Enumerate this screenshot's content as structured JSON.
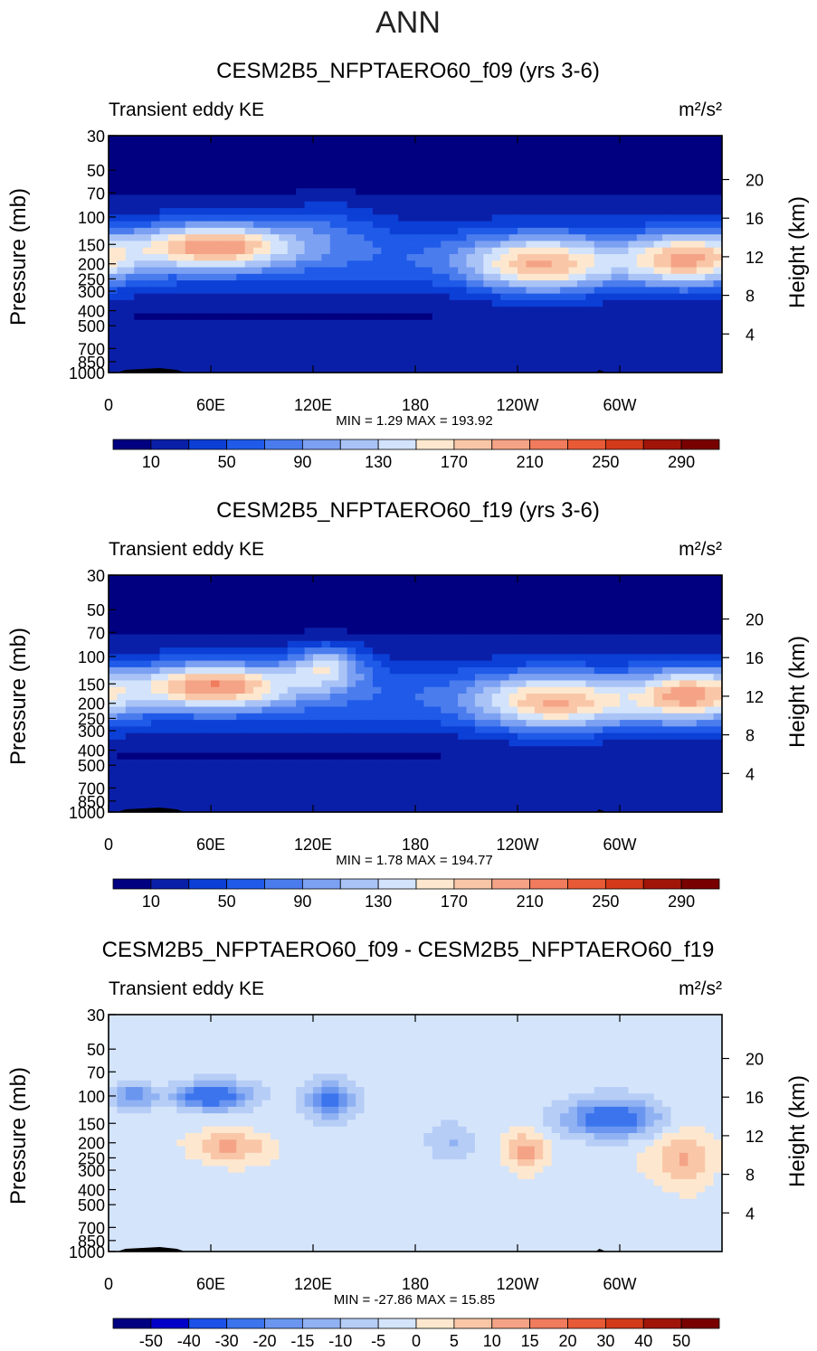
{
  "figure_title": "ANN",
  "colors": {
    "pos": [
      "#f4f7fc",
      "#e6effa",
      "#d2e3f7",
      "#bed4f5",
      "#a8c4f3",
      "#8cb1f0",
      "#6f9af0",
      "#4d80ee",
      "#2b63e7",
      "#1447d1",
      "#0a2fb0",
      "#051f90"
    ],
    "warm": [
      "#fde8cf",
      "#f9c7a8",
      "#f5a386",
      "#f07b5d",
      "#e85a36",
      "#d23a1a",
      "#a01508",
      "#780000"
    ],
    "diff": [
      "#000080",
      "#0000c8",
      "#1c52e8",
      "#3b74ed",
      "#6a96f0",
      "#90b2f3",
      "#b6cdf6",
      "#d4e4fb",
      "#fde8cf",
      "#f9c7a8",
      "#f5a386",
      "#f07b5d",
      "#e85a36",
      "#d23a1a",
      "#a01508",
      "#780000"
    ]
  },
  "chart_data": [
    {
      "type": "heatmap",
      "title": "CESM2B5_NFPTAERO60_f09 (yrs 3-6)",
      "left_label": "Transient eddy KE",
      "right_label": "m²/s²",
      "xlabel": "",
      "ylabel": "Pressure  (mb)",
      "ylabel_right": "Height  (km)",
      "xticks": [
        "0",
        "60E",
        "120E",
        "180",
        "120W",
        "60W"
      ],
      "xtick_lon": [
        0,
        60,
        120,
        180,
        240,
        300
      ],
      "xlim": [
        0,
        360
      ],
      "yticks": [
        "30",
        "50",
        "70",
        "100",
        "150",
        "200",
        "250",
        "300",
        "400",
        "500",
        "700",
        "850",
        "1000"
      ],
      "ytick_p": [
        30,
        50,
        70,
        100,
        150,
        200,
        250,
        300,
        400,
        500,
        700,
        850,
        1000
      ],
      "ylim": [
        1000,
        30
      ],
      "right_ticks": [
        "20",
        "16",
        "12",
        "8",
        "4"
      ],
      "right_tick_km": [
        20,
        16,
        12,
        8,
        4
      ],
      "min_max": "MIN =     1.29   MAX =  193.92",
      "levels": [
        10,
        30,
        50,
        70,
        90,
        110,
        130,
        150,
        170,
        190,
        210,
        230,
        250,
        270,
        290
      ],
      "colorbar_labels": [
        "10",
        "50",
        "90",
        "130",
        "170",
        "210",
        "250",
        "290"
      ],
      "colorbar_label_index": [
        0,
        2,
        4,
        6,
        8,
        10,
        12,
        14
      ],
      "colorbar_colors": [
        "#000080",
        "#0a1fa8",
        "#0b3fd6",
        "#1f5ae8",
        "#4a7cee",
        "#7ca0f2",
        "#a9c3f6",
        "#d2e3fb",
        "#fde8cf",
        "#f9c7a8",
        "#f5a386",
        "#f07b5d",
        "#e85a36",
        "#d23a1a",
        "#a01508",
        "#780000"
      ],
      "blobs": [
        {
          "lon": 62,
          "p": 152,
          "v": 190,
          "wlon": 46,
          "wp": 0.34
        },
        {
          "lon": 128,
          "p": 110,
          "v": 70,
          "wlon": 30,
          "wp": 0.4
        },
        {
          "lon": 254,
          "p": 205,
          "v": 172,
          "wlon": 42,
          "wp": 0.42
        },
        {
          "lon": 338,
          "p": 190,
          "v": 168,
          "wlon": 34,
          "wp": 0.4
        }
      ],
      "field_mode": "absolute"
    },
    {
      "type": "heatmap",
      "title": "CESM2B5_NFPTAERO60_f19 (yrs 3-6)",
      "left_label": "Transient eddy KE",
      "right_label": "m²/s²",
      "xlabel": "",
      "ylabel": "Pressure  (mb)",
      "ylabel_right": "Height  (km)",
      "xticks": [
        "0",
        "60E",
        "120E",
        "180",
        "120W",
        "60W"
      ],
      "xtick_lon": [
        0,
        60,
        120,
        180,
        240,
        300
      ],
      "xlim": [
        0,
        360
      ],
      "yticks": [
        "30",
        "50",
        "70",
        "100",
        "150",
        "200",
        "250",
        "300",
        "400",
        "500",
        "700",
        "850",
        "1000"
      ],
      "ytick_p": [
        30,
        50,
        70,
        100,
        150,
        200,
        250,
        300,
        400,
        500,
        700,
        850,
        1000
      ],
      "ylim": [
        1000,
        30
      ],
      "right_ticks": [
        "20",
        "16",
        "12",
        "8",
        "4"
      ],
      "right_tick_km": [
        20,
        16,
        12,
        8,
        4
      ],
      "min_max": "MIN =     1.78   MAX =  194.77",
      "levels": [
        10,
        30,
        50,
        70,
        90,
        110,
        130,
        150,
        170,
        190,
        210,
        230,
        250,
        270,
        290
      ],
      "colorbar_labels": [
        "10",
        "50",
        "90",
        "130",
        "170",
        "210",
        "250",
        "290"
      ],
      "colorbar_label_index": [
        0,
        2,
        4,
        6,
        8,
        10,
        12,
        14
      ],
      "colorbar_colors": [
        "#000080",
        "#0a1fa8",
        "#0b3fd6",
        "#1f5ae8",
        "#4a7cee",
        "#7ca0f2",
        "#a9c3f6",
        "#d2e3fb",
        "#fde8cf",
        "#f9c7a8",
        "#f5a386",
        "#f07b5d",
        "#e85a36",
        "#d23a1a",
        "#a01508",
        "#780000"
      ],
      "blobs": [
        {
          "lon": 62,
          "p": 152,
          "v": 192,
          "wlon": 46,
          "wp": 0.34
        },
        {
          "lon": 128,
          "p": 115,
          "v": 140,
          "wlon": 22,
          "wp": 0.32
        },
        {
          "lon": 262,
          "p": 200,
          "v": 170,
          "wlon": 46,
          "wp": 0.42
        },
        {
          "lon": 340,
          "p": 180,
          "v": 168,
          "wlon": 30,
          "wp": 0.4
        }
      ],
      "field_mode": "absolute"
    },
    {
      "type": "heatmap",
      "title": "CESM2B5_NFPTAERO60_f09 - CESM2B5_NFPTAERO60_f19",
      "left_label": "Transient eddy KE",
      "right_label": "m²/s²",
      "xlabel": "",
      "ylabel": "Pressure  (mb)",
      "ylabel_right": "Height  (km)",
      "xticks": [
        "0",
        "60E",
        "120E",
        "180",
        "120W",
        "60W"
      ],
      "xtick_lon": [
        0,
        60,
        120,
        180,
        240,
        300
      ],
      "xlim": [
        0,
        360
      ],
      "yticks": [
        "30",
        "50",
        "70",
        "100",
        "150",
        "200",
        "250",
        "300",
        "400",
        "500",
        "700",
        "850",
        "1000"
      ],
      "ytick_p": [
        30,
        50,
        70,
        100,
        150,
        200,
        250,
        300,
        400,
        500,
        700,
        850,
        1000
      ],
      "ylim": [
        1000,
        30
      ],
      "right_ticks": [
        "20",
        "16",
        "12",
        "8",
        "4"
      ],
      "right_tick_km": [
        20,
        16,
        12,
        8,
        4
      ],
      "min_max": "MIN =  -27.86   MAX =   15.85",
      "levels": [
        -50,
        -40,
        -30,
        -20,
        -15,
        -10,
        -5,
        0,
        5,
        10,
        15,
        20,
        30,
        40,
        50
      ],
      "colorbar_labels": [
        "-50",
        "-40",
        "-30",
        "-20",
        "-15",
        "-10",
        "-5",
        "0",
        "5",
        "10",
        "15",
        "20",
        "30",
        "40",
        "50"
      ],
      "colorbar_label_index": [
        0,
        1,
        2,
        3,
        4,
        5,
        6,
        7,
        8,
        9,
        10,
        11,
        12,
        13,
        14
      ],
      "colorbar_colors": [
        "#000080",
        "#0000c8",
        "#1c52e8",
        "#3b74ed",
        "#6a96f0",
        "#90b2f3",
        "#b6cdf6",
        "#d4e4fb",
        "#fde8cf",
        "#f9c7a8",
        "#f5a386",
        "#f07b5d",
        "#e85a36",
        "#d23a1a",
        "#a01508",
        "#780000"
      ],
      "blobs": [
        {
          "lon": 60,
          "p": 100,
          "v": -26,
          "wlon": 22,
          "wp": 0.2
        },
        {
          "lon": 15,
          "p": 100,
          "v": -18,
          "wlon": 12,
          "wp": 0.18
        },
        {
          "lon": 130,
          "p": 105,
          "v": -22,
          "wlon": 14,
          "wp": 0.28
        },
        {
          "lon": 295,
          "p": 140,
          "v": -24,
          "wlon": 28,
          "wp": 0.28
        },
        {
          "lon": 70,
          "p": 210,
          "v": 13,
          "wlon": 22,
          "wp": 0.2
        },
        {
          "lon": 245,
          "p": 230,
          "v": 15.5,
          "wlon": 12,
          "wp": 0.3
        },
        {
          "lon": 338,
          "p": 250,
          "v": 14,
          "wlon": 18,
          "wp": 0.4
        },
        {
          "lon": 200,
          "p": 200,
          "v": -9,
          "wlon": 14,
          "wp": 0.3
        }
      ],
      "field_mode": "diff"
    }
  ]
}
